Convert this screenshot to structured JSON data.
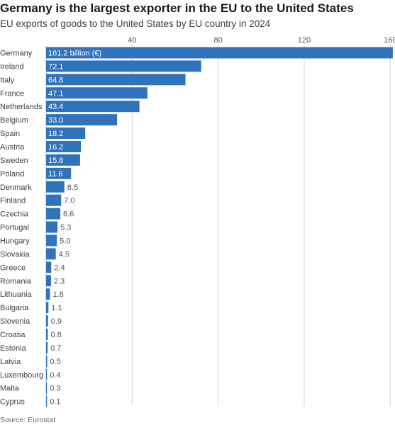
{
  "title": "Germany is the largest exporter in the EU to the United States",
  "subtitle": "EU exports of goods to the United States by EU country in 2024",
  "source": "Source: Eurostat",
  "colors": {
    "bar": "#3173bb",
    "grid": "#d4d4d4",
    "inside_label": "#ffffff",
    "outside_label": "#555555",
    "category_label": "#404040"
  },
  "chart_data": {
    "type": "bar",
    "orientation": "horizontal",
    "title": "Germany is the largest exporter in the EU to the United States",
    "subtitle": "EU exports of goods to the United States by EU country in 2024",
    "xlim": [
      0,
      163
    ],
    "x_ticks": [
      40,
      80,
      120,
      160
    ],
    "x_tick_labels": [
      "40",
      "80",
      "120",
      "160"
    ],
    "grid": true,
    "categories": [
      "Germany",
      "Ireland",
      "Italy",
      "France",
      "Netherlands",
      "Belgium",
      "Spain",
      "Austria",
      "Sweden",
      "Poland",
      "Denmark",
      "Finland",
      "Czechia",
      "Portugal",
      "Hungary",
      "Slovakia",
      "Greece",
      "Romania",
      "Lithuania",
      "Bulgaria",
      "Slovenia",
      "Croatia",
      "Estonia",
      "Latvia",
      "Luxembourg",
      "Malta",
      "Cyprus"
    ],
    "values": [
      161.2,
      72.1,
      64.8,
      47.1,
      43.4,
      33.0,
      18.2,
      16.2,
      15.8,
      11.6,
      8.5,
      7.0,
      6.6,
      5.3,
      5.0,
      4.5,
      2.4,
      2.3,
      1.8,
      1.1,
      0.9,
      0.8,
      0.7,
      0.5,
      0.4,
      0.3,
      0.1
    ],
    "value_labels": [
      "161.2 billion (€)",
      "72.1",
      "64.8",
      "47.1",
      "43.4",
      "33.0",
      "18.2",
      "16.2",
      "15.8",
      "11.6",
      "8.5",
      "7.0",
      "6.6",
      "5.3",
      "5.0",
      "4.5",
      "2.4",
      "2.3",
      "1.8",
      "1.1",
      "0.9",
      "0.8",
      "0.7",
      "0.5",
      "0.4",
      "0.3",
      "0.1"
    ]
  }
}
